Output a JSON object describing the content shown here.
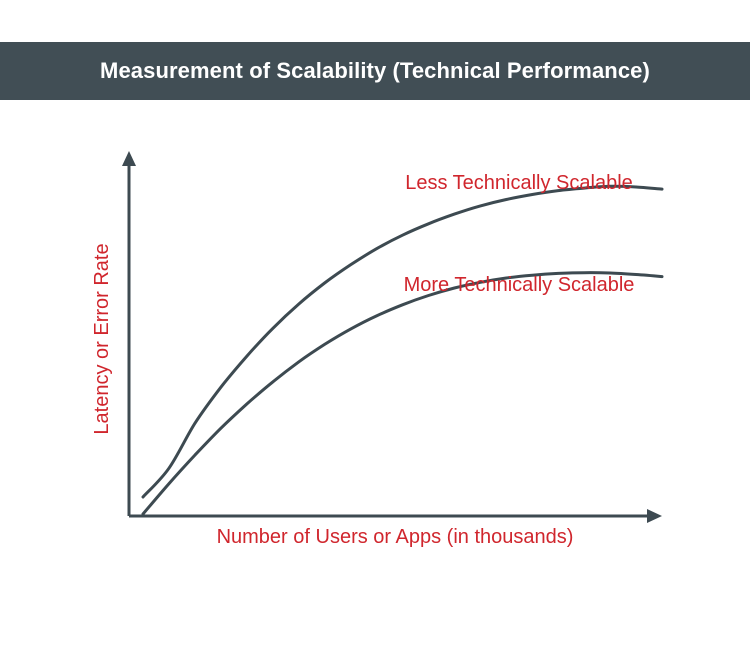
{
  "header": {
    "title": "Measurement of Scalability (Technical Performance)"
  },
  "colors": {
    "header_bg": "#414e55",
    "header_text": "#ffffff",
    "curve": "#3d4a51",
    "axis": "#3d4a51",
    "label_text": "#d0262d"
  },
  "chart_data": {
    "type": "line",
    "title": "",
    "xlabel": "Number of Users or Apps (in thousands)",
    "ylabel": "Latency or Error Rate",
    "xlim": [
      0,
      100
    ],
    "ylim": [
      0,
      100
    ],
    "grid": false,
    "legend": "none",
    "series": [
      {
        "name": "Less Technically Scalable",
        "shape": "saturating",
        "x": [
          0,
          5,
          10,
          15,
          20,
          25,
          30,
          35,
          40,
          45,
          50,
          55,
          60,
          65,
          70,
          75,
          80,
          85,
          90,
          95,
          100
        ],
        "y": [
          0,
          12.8,
          25.4,
          35.5,
          44.2,
          52.0,
          58.8,
          64.7,
          69.8,
          74.3,
          78.1,
          81.3,
          84.0,
          86.3,
          88.1,
          89.5,
          90.6,
          91.3,
          91.8,
          91.6,
          91.0
        ]
      },
      {
        "name": "More Technically Scalable",
        "shape": "saturating",
        "x": [
          0,
          5,
          10,
          15,
          20,
          25,
          30,
          35,
          40,
          45,
          50,
          55,
          60,
          65,
          70,
          75,
          80,
          85,
          90,
          95,
          100
        ],
        "y": [
          0,
          8.5,
          16.5,
          24.0,
          30.8,
          37.0,
          42.6,
          47.5,
          51.8,
          55.5,
          58.6,
          61.2,
          63.3,
          64.9,
          66.1,
          66.9,
          67.4,
          67.6,
          67.5,
          67.1,
          66.5
        ]
      }
    ]
  }
}
